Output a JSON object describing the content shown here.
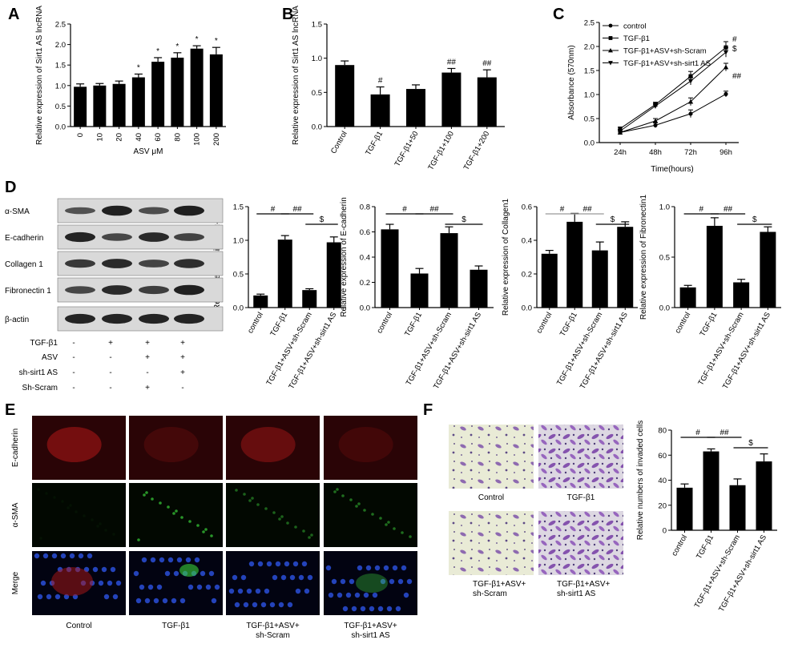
{
  "colors": {
    "bar": "#000000",
    "axis": "#000000",
    "sig_line_light": "#999999",
    "text": "#000000"
  },
  "panel_labels": {
    "A": "A",
    "B": "B",
    "C": "C",
    "D": "D",
    "E": "E",
    "F": "F"
  },
  "chart_data": [
    {
      "id": "A",
      "type": "bar",
      "ylabel": "Relative expression of Sirt1 AS lncRNA",
      "xlabel": "ASV μM",
      "ylim": [
        0,
        2.5
      ],
      "yticks": [
        "0.0",
        "0.5",
        "1.0",
        "1.5",
        "2.0",
        "2.5"
      ],
      "categories": [
        "0",
        "10",
        "20",
        "40",
        "60",
        "80",
        "100",
        "200"
      ],
      "values": [
        0.97,
        1.0,
        1.04,
        1.2,
        1.58,
        1.68,
        1.9,
        1.76
      ],
      "errors": [
        0.07,
        0.05,
        0.07,
        0.08,
        0.1,
        0.12,
        0.07,
        0.17
      ],
      "annotations": [
        "",
        "",
        "",
        "*",
        "*",
        "*",
        "*",
        "*"
      ]
    },
    {
      "id": "B",
      "type": "bar",
      "ylabel": "Relative expression of Sirt1 AS lncRNA",
      "xlabel": "",
      "ylim": [
        0,
        1.5
      ],
      "yticks": [
        "0.0",
        "0.5",
        "1.0",
        "1.5"
      ],
      "categories": [
        "Control",
        "TGF-β1",
        "TGF-β1+50",
        "TGF-β1+100",
        "TGF-β1+200"
      ],
      "values": [
        0.9,
        0.47,
        0.55,
        0.79,
        0.72
      ],
      "errors": [
        0.06,
        0.11,
        0.06,
        0.06,
        0.11
      ],
      "annotations": [
        "",
        "#",
        "",
        "##",
        "##"
      ]
    },
    {
      "id": "C",
      "type": "line",
      "ylabel": "Absorbance (570nm)",
      "xlabel": "Time(hours)",
      "ylim": [
        0,
        2.5
      ],
      "yticks": [
        "0.0",
        "0.5",
        "1.0",
        "1.5",
        "2.0",
        "2.5"
      ],
      "categories": [
        "24h",
        "48h",
        "72h",
        "96h"
      ],
      "series": [
        {
          "name": "control",
          "marker": "circle",
          "values": [
            0.21,
            0.36,
            0.6,
            1.01
          ],
          "errors": [
            0.03,
            0.05,
            0.08,
            0.06
          ]
        },
        {
          "name": "TGF-β1",
          "marker": "square",
          "values": [
            0.29,
            0.79,
            1.38,
            1.98
          ],
          "errors": [
            0.03,
            0.05,
            0.1,
            0.12
          ]
        },
        {
          "name": "TGF-β1+ASV+sh-Scram",
          "marker": "triangle-up",
          "values": [
            0.21,
            0.45,
            0.85,
            1.57
          ],
          "errors": [
            0.03,
            0.05,
            0.08,
            0.08
          ]
        },
        {
          "name": "TGF-β1+ASV+sh-sirt1 AS",
          "marker": "triangle-down",
          "values": [
            0.24,
            0.76,
            1.28,
            1.88
          ],
          "errors": [
            0.03,
            0.05,
            0.08,
            0.1
          ]
        }
      ],
      "end_annotations": [
        "",
        "#",
        "##",
        "$"
      ],
      "legend_position": "top-right"
    },
    {
      "id": "D1",
      "type": "bar",
      "ylabel": "Relative expression of α-SMA",
      "ylim": [
        0,
        1.5
      ],
      "yticks": [
        "0.0",
        "0.5",
        "1.0",
        "1.5"
      ],
      "categories": [
        "control",
        "TGF-β1",
        "TGF-β1+ASV+sh-Scram",
        "TGF-β1+ASV+sh-sirt1 AS"
      ],
      "values": [
        0.18,
        1.01,
        0.26,
        0.97
      ],
      "errors": [
        0.02,
        0.06,
        0.02,
        0.08
      ],
      "brackets": [
        {
          "from": 0,
          "to": 1,
          "label": "#",
          "level": 0
        },
        {
          "from": 1,
          "to": 2,
          "label": "##",
          "level": 0
        },
        {
          "from": 2,
          "to": 3,
          "label": "$",
          "level": 1
        }
      ]
    },
    {
      "id": "D2",
      "type": "bar",
      "ylabel": "Relative expression of E-cadherin",
      "ylim": [
        0,
        0.8
      ],
      "yticks": [
        "0.0",
        "0.2",
        "0.4",
        "0.6",
        "0.8"
      ],
      "categories": [
        "control",
        "TGF-β1",
        "TGF-β1+ASV+sh-Scram",
        "TGF-β1+ASV+sh-sirt1 AS"
      ],
      "values": [
        0.62,
        0.27,
        0.59,
        0.3
      ],
      "errors": [
        0.04,
        0.04,
        0.05,
        0.03
      ],
      "brackets": [
        {
          "from": 0,
          "to": 1,
          "label": "#",
          "level": 0
        },
        {
          "from": 1,
          "to": 2,
          "label": "##",
          "level": 0
        },
        {
          "from": 2,
          "to": 3,
          "label": "$",
          "level": 1
        }
      ]
    },
    {
      "id": "D3",
      "type": "bar",
      "ylabel": "Relative expression of Collagen1",
      "ylim": [
        0,
        0.6
      ],
      "yticks": [
        "0.0",
        "0.2",
        "0.4",
        "0.6"
      ],
      "categories": [
        "control",
        "TGF-β1",
        "TGF-β1+ASV+sh-Scram",
        "TGF-β1+ASV+sh-sirt1 AS"
      ],
      "values": [
        0.32,
        0.51,
        0.34,
        0.48
      ],
      "errors": [
        0.02,
        0.05,
        0.05,
        0.03
      ],
      "brackets": [
        {
          "from": 0,
          "to": 1,
          "label": "#",
          "level": 0
        },
        {
          "from": 1,
          "to": 2,
          "label": "##",
          "level": 0
        },
        {
          "from": 2,
          "to": 3,
          "label": "$",
          "level": 1
        }
      ]
    },
    {
      "id": "D4",
      "type": "bar",
      "ylabel": "Relative expression of Fibronectin1",
      "ylim": [
        0,
        1.0
      ],
      "yticks": [
        "0.0",
        "0.5",
        "1.0"
      ],
      "categories": [
        "control",
        "TGF-β1",
        "TGF-β1+ASV+sh-Scram",
        "TGF-β1+ASV+sh-sirt1 AS"
      ],
      "values": [
        0.2,
        0.81,
        0.25,
        0.75
      ],
      "errors": [
        0.02,
        0.08,
        0.03,
        0.05
      ],
      "brackets": [
        {
          "from": 0,
          "to": 1,
          "label": "#",
          "level": 0
        },
        {
          "from": 1,
          "to": 2,
          "label": "##",
          "level": 0
        },
        {
          "from": 2,
          "to": 3,
          "label": "$",
          "level": 1
        }
      ]
    },
    {
      "id": "F",
      "type": "bar",
      "ylabel": "Relative numbers of invaded cells",
      "ylim": [
        0,
        80
      ],
      "yticks": [
        "0",
        "20",
        "40",
        "60",
        "80"
      ],
      "categories": [
        "control",
        "TGF-β1",
        "TGF-β1+ASV+sh-Scram",
        "TGF-β1+ASV+sh-sirt1 AS"
      ],
      "values": [
        34,
        63,
        36,
        55
      ],
      "errors": [
        3,
        2,
        5,
        6
      ],
      "brackets": [
        {
          "from": 0,
          "to": 1,
          "label": "#",
          "level": 0
        },
        {
          "from": 1,
          "to": 2,
          "label": "##",
          "level": 0
        },
        {
          "from": 2,
          "to": 3,
          "label": "$",
          "level": 1
        }
      ]
    }
  ],
  "western": {
    "bands": [
      "α-SMA",
      "E-cadherin",
      "Collagen 1",
      "Fibronectin 1",
      "β-actin"
    ],
    "treatments": [
      {
        "label": "TGF-β1",
        "signs": [
          "-",
          "+",
          "+",
          "+"
        ]
      },
      {
        "label": "ASV",
        "signs": [
          "-",
          "-",
          "+",
          "+"
        ]
      },
      {
        "label": "sh-sirt1 AS",
        "signs": [
          "-",
          "-",
          "-",
          "+"
        ]
      },
      {
        "label": "Sh-Scram",
        "signs": [
          "-",
          "-",
          "+",
          "-"
        ]
      }
    ],
    "intensities": [
      [
        0.45,
        0.95,
        0.5,
        0.95
      ],
      [
        0.9,
        0.55,
        0.85,
        0.6
      ],
      [
        0.7,
        0.85,
        0.6,
        0.8
      ],
      [
        0.55,
        0.85,
        0.65,
        0.95
      ],
      [
        0.9,
        0.9,
        0.9,
        0.9
      ]
    ]
  },
  "immuno": {
    "rows": [
      "E-cadherin",
      "α-SMA",
      "Merge"
    ],
    "cols": [
      "Control",
      "TGF-β1",
      "TGF-β1+ASV+\nsh-Scram",
      "TGF-β1+ASV+\nsh-sirt1 AS"
    ]
  },
  "transwell": {
    "labels": [
      "Control",
      "TGF-β1",
      "TGF-β1+ASV+\nsh-Scram",
      "TGF-β1+ASV+\nsh-sirt1 AS"
    ]
  }
}
